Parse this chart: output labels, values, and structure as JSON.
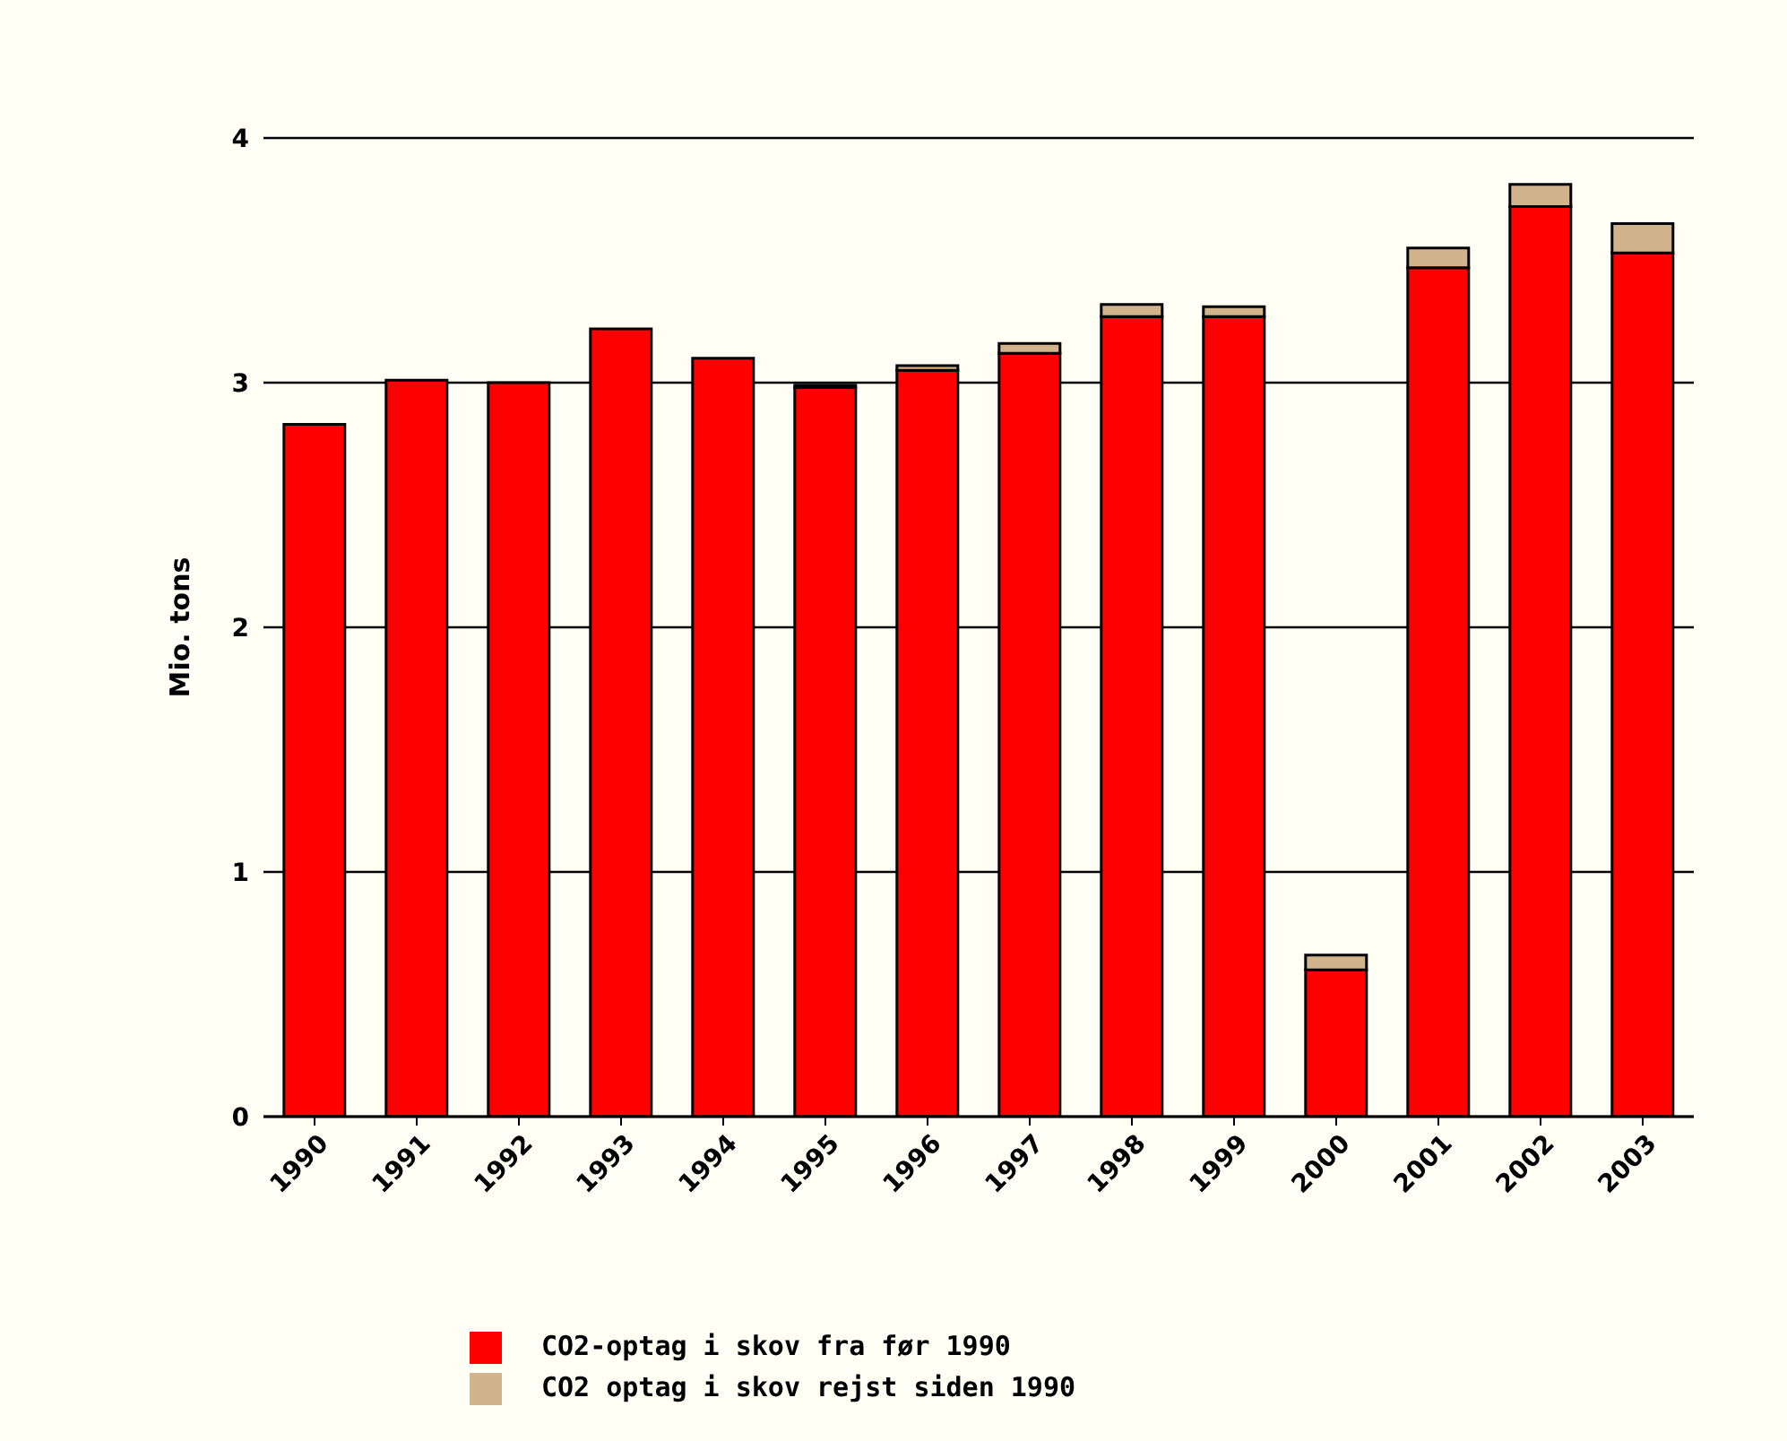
{
  "chart_data": {
    "type": "bar",
    "ylabel": "Mio. tons",
    "categories": [
      "1990",
      "1991",
      "1992",
      "1993",
      "1994",
      "1995",
      "1996",
      "1997",
      "1998",
      "1999",
      "2000",
      "2001",
      "2002",
      "2003"
    ],
    "series": [
      {
        "name": "CO2-optag i skov fra før 1990",
        "color": "#ff0000",
        "values": [
          2.83,
          3.01,
          3.0,
          3.22,
          3.1,
          2.98,
          3.05,
          3.12,
          3.27,
          3.27,
          0.6,
          3.47,
          3.72,
          3.53
        ]
      },
      {
        "name": "CO2 optag i skov rejst siden 1990",
        "color": "#d2b48c",
        "values": [
          0,
          0,
          0,
          0,
          0,
          0.01,
          0.02,
          0.04,
          0.05,
          0.04,
          0.06,
          0.08,
          0.09,
          0.12
        ]
      }
    ],
    "stacked": true,
    "ylim": [
      0,
      4
    ],
    "yticks": [
      0,
      1,
      2,
      3,
      4
    ],
    "grid": "y",
    "legend": "bottom"
  }
}
